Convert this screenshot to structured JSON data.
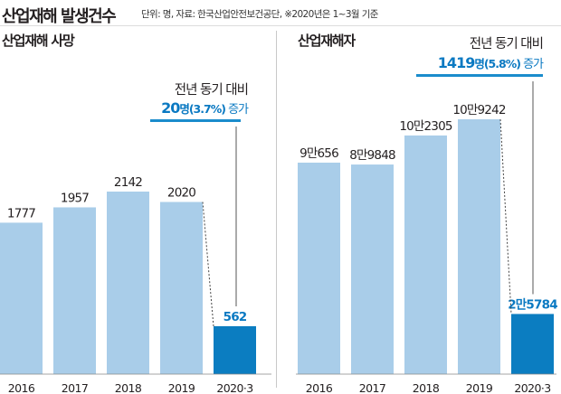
{
  "header": {
    "title": "산업재해 발생건수",
    "note": "단위: 명, 자료: 한국산업안전보건공단, ※2020년은 1~3월 기준"
  },
  "colors": {
    "bar": "#a9cde9",
    "highlight": "#0b7dc1",
    "accent_text": "#0a79c2",
    "dotted_line": "#444444"
  },
  "chart_data": [
    {
      "type": "bar",
      "title": "산업재해 사망",
      "categories": [
        "2016",
        "2017",
        "2018",
        "2019",
        "2020·3"
      ],
      "values": [
        1777,
        1957,
        2142,
        2020,
        562
      ],
      "value_labels": [
        "1777",
        "1957",
        "2142",
        "2020",
        "562"
      ],
      "highlight_index": 4,
      "annotation": {
        "line1": "전년 동기 대비",
        "num": "20",
        "unit": "명",
        "pct": "(3.7%)",
        "suffix": " 증가"
      }
    },
    {
      "type": "bar",
      "title": "산업재해자",
      "categories": [
        "2016",
        "2017",
        "2018",
        "2019",
        "2020·3"
      ],
      "values": [
        90656,
        89848,
        102305,
        109242,
        25784
      ],
      "value_labels": [
        "9만656",
        "8만9848",
        "10만2305",
        "10만9242",
        "2만5784"
      ],
      "highlight_index": 4,
      "annotation": {
        "line1": "전년 동기 대비",
        "num": "1419",
        "unit": "명",
        "pct": "(5.8%)",
        "suffix": " 증가"
      }
    }
  ]
}
